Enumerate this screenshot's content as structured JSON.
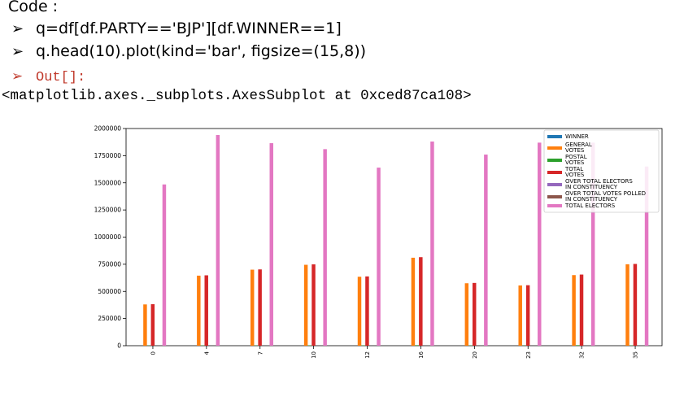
{
  "code": {
    "heading": "Code :",
    "line1": "q=df[df.PARTY=='BJP'][df.WINNER==1]",
    "line2": "q.head(10).plot(kind='bar', figsize=(15,8))",
    "out_label": "Out[]:",
    "repr": "<matplotlib.axes._subplots.AxesSubplot at 0xced87ca108>"
  },
  "chart_data": {
    "type": "bar",
    "categories": [
      "0",
      "4",
      "7",
      "10",
      "12",
      "16",
      "20",
      "23",
      "32",
      "35"
    ],
    "yticks": [
      "0",
      "250000",
      "500000",
      "750000",
      "1000000",
      "1250000",
      "1500000",
      "1750000",
      "2000000"
    ],
    "ylim": [
      0,
      2000000
    ],
    "legend_position": "top-right",
    "series": [
      {
        "name": "WINNER",
        "color": "#1f77b4",
        "values": [
          1,
          1,
          1,
          1,
          1,
          1,
          1,
          1,
          1,
          1
        ]
      },
      {
        "name": "GENERAL VOTES",
        "color": "#ff7f0e",
        "values": [
          380000,
          645000,
          700000,
          745000,
          635000,
          810000,
          575000,
          555000,
          650000,
          750000
        ]
      },
      {
        "name": "POSTAL VOTES",
        "color": "#2ca02c",
        "values": [
          2000,
          3000,
          2500,
          4000,
          3000,
          5000,
          3000,
          2000,
          5000,
          3000
        ]
      },
      {
        "name": "TOTAL VOTES",
        "color": "#d62728",
        "values": [
          382000,
          648000,
          702500,
          749000,
          638000,
          815000,
          578000,
          557000,
          655000,
          753000
        ]
      },
      {
        "name": "OVER TOTAL ELECTORS IN CONSTITUENCY",
        "color": "#9467bd",
        "values": [
          25.7,
          33.4,
          37.7,
          41.4,
          38.9,
          43.4,
          32.9,
          29.8,
          35.0,
          45.6
        ]
      },
      {
        "name": "OVER TOTAL VOTES POLLED IN CONSTITUENCY",
        "color": "#8c564b",
        "values": [
          36.0,
          52.0,
          55.0,
          59.0,
          51.0,
          60.0,
          45.0,
          42.0,
          50.0,
          56.0
        ]
      },
      {
        "name": "TOTAL ELECTORS",
        "color": "#e377c2",
        "values": [
          1485000,
          1940000,
          1865000,
          1810000,
          1640000,
          1880000,
          1760000,
          1870000,
          1870000,
          1650000
        ]
      }
    ],
    "legend_lines": [
      [
        "WINNER"
      ],
      [
        "GENERAL",
        "VOTES"
      ],
      [
        "POSTAL",
        "VOTES"
      ],
      [
        "TOTAL",
        "VOTES"
      ],
      [
        "OVER TOTAL ELECTORS",
        "IN CONSTITUENCY"
      ],
      [
        "OVER TOTAL VOTES POLLED",
        "IN CONSTITUENCY"
      ],
      [
        "TOTAL ELECTORS"
      ]
    ]
  }
}
